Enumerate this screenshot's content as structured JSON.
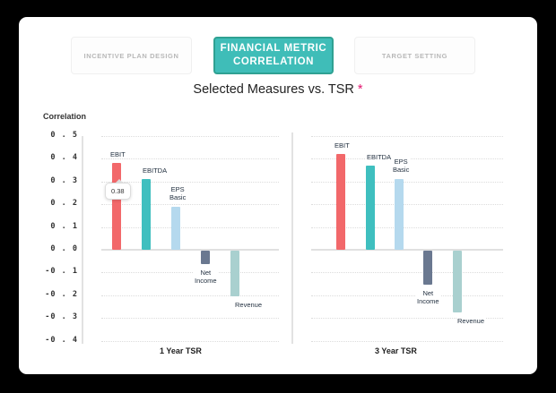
{
  "tabs": [
    {
      "label": "INCENTIVE PLAN DESIGN",
      "active": false
    },
    {
      "label": "FINANCIAL METRIC CORRELATION",
      "line1": "FINANCIAL METRIC",
      "line2": "CORRELATION",
      "active": true
    },
    {
      "label": "TARGET SETTING",
      "active": false
    }
  ],
  "title": "Selected Measures vs. TSR",
  "title_marker": "*",
  "tooltip": {
    "value": "0.38"
  },
  "colors": {
    "EBIT": "#f2686a",
    "EBITDA": "#3fbfbf",
    "EPS Basic": "#b5d9ee",
    "Net Income": "#6a7890",
    "Revenue": "#a9d0cf",
    "accent": "#3fbdb8",
    "marker": "#e3166f"
  },
  "chart_data": {
    "type": "bar",
    "title": "Selected Measures vs. TSR",
    "ylabel": "Correlation",
    "ylim": [
      -0.4,
      0.5
    ],
    "yticks": [
      "0.5",
      "0.4",
      "0.3",
      "0.2",
      "0.1",
      "0.0",
      "-0.1",
      "-0.2",
      "-0.3",
      "-0.4"
    ],
    "grid": true,
    "categories": [
      "1 Year TSR",
      "3 Year TSR"
    ],
    "series": [
      {
        "name": "EBIT",
        "label": "EBIT",
        "values": [
          0.38,
          0.42
        ]
      },
      {
        "name": "EBITDA",
        "label": "EBITDA",
        "values": [
          0.31,
          0.37
        ]
      },
      {
        "name": "EPS Basic",
        "label_line1": "EPS",
        "label_line2": "Basic",
        "values": [
          0.19,
          0.31
        ]
      },
      {
        "name": "Net Income",
        "label_line1": "Net",
        "label_line2": "Income",
        "values": [
          -0.06,
          -0.15
        ]
      },
      {
        "name": "Revenue",
        "label": "Revenue",
        "values": [
          -0.2,
          -0.27
        ]
      }
    ],
    "annotations": [
      {
        "series": "EBIT",
        "category": "1 Year TSR",
        "text": "0.38"
      }
    ]
  }
}
